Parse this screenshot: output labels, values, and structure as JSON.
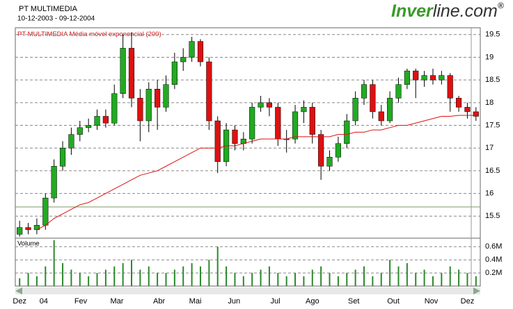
{
  "header": {
    "title": "PT MULTIMEDIA",
    "period": "10-12-2003 - 09-12-2004",
    "logo_a": "Inver",
    "logo_b": "line.com",
    "logo_mark": "®"
  },
  "chart_data": {
    "type": "candlestick",
    "grid": true,
    "x": [
      0,
      1,
      2,
      3,
      4,
      5,
      6,
      7,
      8,
      9,
      10,
      11,
      12,
      13,
      14,
      15,
      16,
      17,
      18,
      19,
      20,
      21,
      22,
      23,
      24,
      25,
      26,
      27,
      28,
      29,
      30,
      31,
      32,
      33,
      34,
      35,
      36,
      37,
      38,
      39,
      40,
      41,
      42,
      43,
      44,
      45,
      46,
      47,
      48,
      49,
      50,
      51,
      52,
      53
    ],
    "xlim": [
      -0.5,
      53.5
    ],
    "xticks": [
      {
        "value": 0,
        "label": "Dez"
      },
      {
        "value": 2.8,
        "label": "04"
      },
      {
        "value": 7.1,
        "label": "Fev"
      },
      {
        "value": 11.3,
        "label": "Mar"
      },
      {
        "value": 16.2,
        "label": "Abr"
      },
      {
        "value": 20.4,
        "label": "Mai"
      },
      {
        "value": 24.9,
        "label": "Jun"
      },
      {
        "value": 29.7,
        "label": "Jul"
      },
      {
        "value": 34,
        "label": "Ago"
      },
      {
        "value": 38.8,
        "label": "Set"
      },
      {
        "value": 43.4,
        "label": "Out"
      },
      {
        "value": 47.8,
        "label": "Nov"
      },
      {
        "value": 52,
        "label": "Dez"
      }
    ],
    "ylim": [
      15.03,
      19.65
    ],
    "yticks": [
      15.5,
      16,
      16.5,
      17,
      17.5,
      18,
      18.5,
      19,
      19.5
    ],
    "up_color": "#22aa22",
    "down_color": "#dd1111",
    "name": "PT MULTIMEDIA",
    "open": [
      15.1,
      15.25,
      15.2,
      15.3,
      15.9,
      16.6,
      17.0,
      17.3,
      17.45,
      17.5,
      17.7,
      17.55,
      18.2,
      19.2,
      18.1,
      17.6,
      18.3,
      17.9,
      18.4,
      18.9,
      19.0,
      19.35,
      18.9,
      17.6,
      16.7,
      17.4,
      17.1,
      17.2,
      17.9,
      18.0,
      17.9,
      17.2,
      17.2,
      17.8,
      17.9,
      17.3,
      16.6,
      16.8,
      17.1,
      17.6,
      18.1,
      18.4,
      17.8,
      17.6,
      18.1,
      18.4,
      18.7,
      18.5,
      18.6,
      18.5,
      18.6,
      18.1,
      17.9,
      17.8
    ],
    "high": [
      15.4,
      15.35,
      15.45,
      16.0,
      16.75,
      17.15,
      17.45,
      17.6,
      17.65,
      17.85,
      17.85,
      18.4,
      19.5,
      19.55,
      18.3,
      18.45,
      18.5,
      18.6,
      19.1,
      19.2,
      19.45,
      19.4,
      19.0,
      17.7,
      17.55,
      17.5,
      17.35,
      18.0,
      18.15,
      18.1,
      18.0,
      17.4,
      17.95,
      18.05,
      18.0,
      17.4,
      16.95,
      17.25,
      17.75,
      18.25,
      18.5,
      18.5,
      17.95,
      18.25,
      18.55,
      18.75,
      18.75,
      18.7,
      18.75,
      18.7,
      18.65,
      18.15,
      18.0,
      17.9
    ],
    "low": [
      15.05,
      15.1,
      15.1,
      15.2,
      15.8,
      16.5,
      16.85,
      17.15,
      17.35,
      17.4,
      17.45,
      17.5,
      18.1,
      17.9,
      17.15,
      17.35,
      17.4,
      17.8,
      18.3,
      18.7,
      18.9,
      18.8,
      17.4,
      16.45,
      16.6,
      16.95,
      16.95,
      17.1,
      17.8,
      17.7,
      17.05,
      16.9,
      17.1,
      17.55,
      17.1,
      16.3,
      16.5,
      16.7,
      17.0,
      17.5,
      17.95,
      17.65,
      17.5,
      17.55,
      18.0,
      18.3,
      18.1,
      18.35,
      18.4,
      18.4,
      17.8,
      17.8,
      17.65,
      17.6
    ],
    "close": [
      15.25,
      15.2,
      15.3,
      15.9,
      16.6,
      17.0,
      17.3,
      17.45,
      17.5,
      17.7,
      17.55,
      18.2,
      19.2,
      18.1,
      17.6,
      18.3,
      17.9,
      18.4,
      18.9,
      19.0,
      19.35,
      18.9,
      17.6,
      16.7,
      17.4,
      17.1,
      17.2,
      17.9,
      18.0,
      17.9,
      17.2,
      17.2,
      17.8,
      17.9,
      17.3,
      16.6,
      16.8,
      17.1,
      17.6,
      18.1,
      18.4,
      17.8,
      17.6,
      18.1,
      18.4,
      18.7,
      18.5,
      18.6,
      18.5,
      18.6,
      18.1,
      17.9,
      17.8,
      17.7
    ],
    "ema": {
      "name": "Média móvel exponencial (200)",
      "color": "#dd1111",
      "values": [
        null,
        null,
        15.2,
        15.3,
        15.45,
        15.55,
        15.65,
        15.75,
        15.8,
        15.9,
        16.0,
        16.1,
        16.2,
        16.3,
        16.4,
        16.45,
        16.5,
        16.6,
        16.7,
        16.8,
        16.9,
        17.0,
        17.0,
        17.0,
        17.05,
        17.05,
        17.1,
        17.15,
        17.2,
        17.2,
        17.2,
        17.2,
        17.25,
        17.25,
        17.25,
        17.25,
        17.25,
        17.3,
        17.3,
        17.35,
        17.35,
        17.4,
        17.4,
        17.45,
        17.5,
        17.5,
        17.55,
        17.6,
        17.65,
        17.7,
        17.7,
        17.72,
        17.72,
        17.72
      ]
    },
    "volume": {
      "name": "Volume",
      "color": "#2a8a2a",
      "ylim": [
        0,
        0.73
      ],
      "yticks": [
        {
          "value": 0.2,
          "label": "0.2M"
        },
        {
          "value": 0.4,
          "label": "0.4M"
        },
        {
          "value": 0.6,
          "label": "0.6M"
        }
      ],
      "values": [
        0.12,
        0.2,
        0.15,
        0.3,
        0.7,
        0.35,
        0.25,
        0.2,
        0.15,
        0.2,
        0.25,
        0.3,
        0.35,
        0.4,
        0.25,
        0.3,
        0.2,
        0.2,
        0.25,
        0.3,
        0.35,
        0.3,
        0.4,
        0.6,
        0.3,
        0.2,
        0.15,
        0.2,
        0.25,
        0.3,
        0.2,
        0.15,
        0.2,
        0.15,
        0.25,
        0.3,
        0.2,
        0.15,
        0.2,
        0.25,
        0.3,
        0.15,
        0.2,
        0.4,
        0.3,
        0.35,
        0.2,
        0.25,
        0.15,
        0.2,
        0.3,
        0.25,
        0.2,
        0.15
      ]
    }
  }
}
